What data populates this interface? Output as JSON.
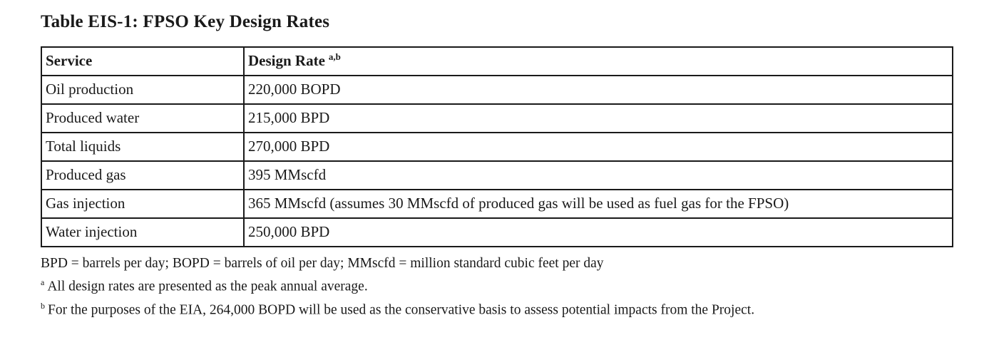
{
  "page": {
    "title": "Table EIS-1: FPSO Key Design Rates"
  },
  "colors": {
    "text": "#1a1a1a",
    "border": "#1a1a1a",
    "background": "#ffffff"
  },
  "table": {
    "columns": [
      {
        "label": "Service",
        "superscript": ""
      },
      {
        "label": "Design Rate",
        "superscript": "a,b"
      }
    ],
    "rows": [
      {
        "service": "Oil production",
        "rate": "220,000 BOPD"
      },
      {
        "service": "Produced water",
        "rate": "215,000 BPD"
      },
      {
        "service": "Total liquids",
        "rate": "270,000 BPD"
      },
      {
        "service": "Produced gas",
        "rate": "395 MMscfd"
      },
      {
        "service": "Gas injection",
        "rate": "365 MMscfd (assumes 30 MMscfd of produced gas will be used as fuel gas for the FPSO)"
      },
      {
        "service": "Water injection",
        "rate": "250,000 BPD"
      }
    ]
  },
  "footnotes": {
    "abbreviations": "BPD = barrels per day; BOPD = barrels of oil per day; MMscfd = million standard cubic feet per day",
    "notes": [
      {
        "marker": "a",
        "text": "All design rates are presented as the peak annual average."
      },
      {
        "marker": "b",
        "text": "For the purposes of the EIA, 264,000 BOPD will be used as the conservative basis to assess potential impacts from the Project."
      }
    ]
  }
}
